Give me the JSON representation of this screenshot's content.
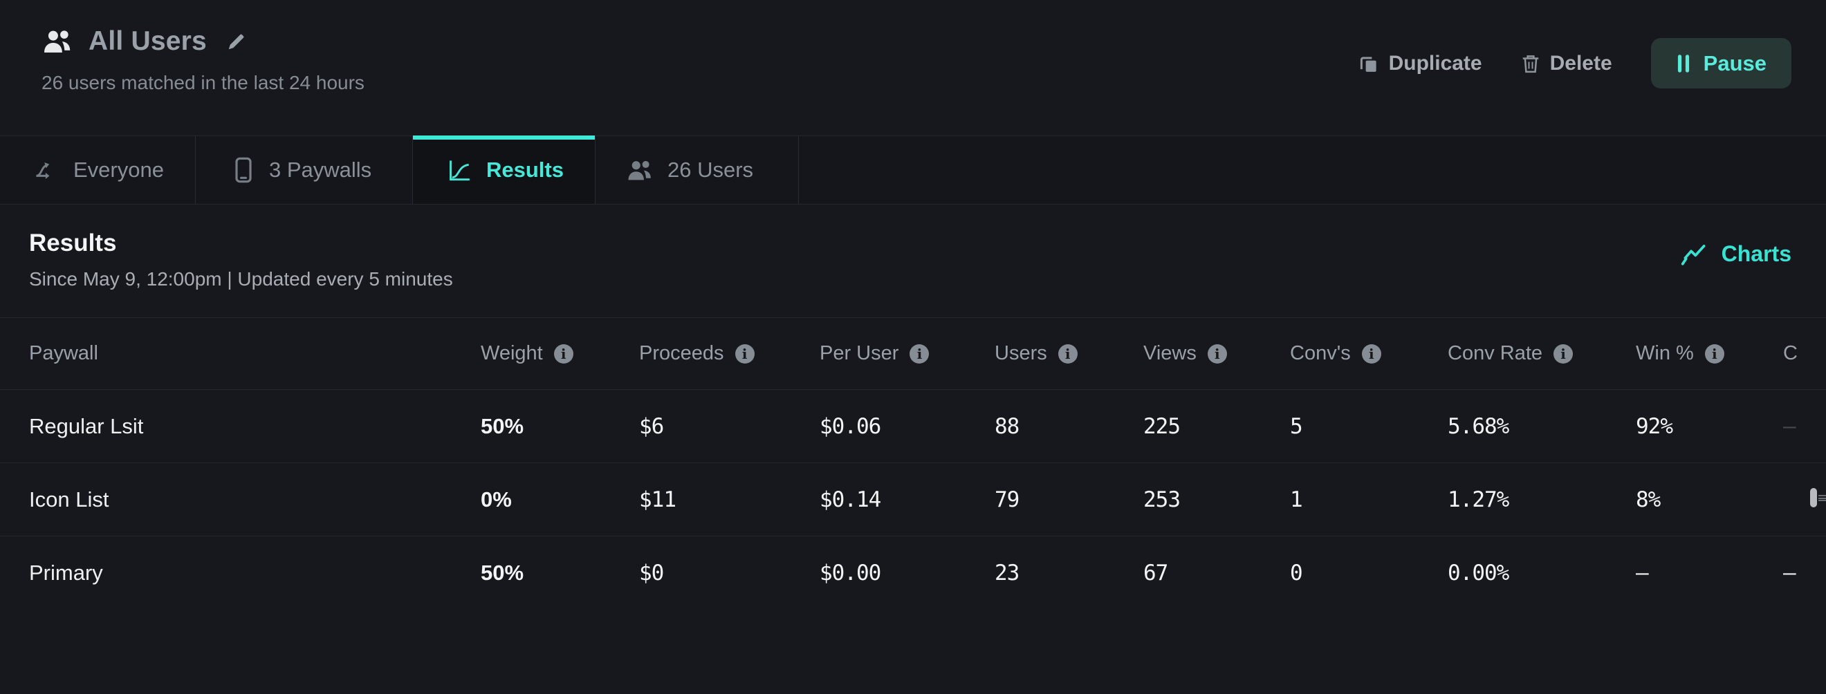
{
  "colors": {
    "accent_teal": "#45e7d7",
    "pause_button_bg": "#263734",
    "page_bg": "#16181d",
    "muted_text": "#8b9199"
  },
  "header": {
    "title": "All Users",
    "subtitle": "26 users matched in the last 24 hours",
    "duplicate_label": "Duplicate",
    "delete_label": "Delete",
    "pause_label": "Pause"
  },
  "tabs": [
    {
      "label": "Everyone",
      "active": false
    },
    {
      "label": "3 Paywalls",
      "active": false
    },
    {
      "label": "Results",
      "active": true
    },
    {
      "label": "26 Users",
      "active": false
    }
  ],
  "results": {
    "heading": "Results",
    "subheading": "Since May 9, 12:00pm | Updated every 5 minutes",
    "charts_label": "Charts"
  },
  "icons": {
    "info_glyph": "i"
  },
  "table": {
    "columns": [
      "Paywall",
      "Weight",
      "Proceeds",
      "Per User",
      "Users",
      "Views",
      "Conv's",
      "Conv Rate",
      "Win %",
      "C"
    ],
    "col_types": [
      "name",
      "weight",
      "mono",
      "mono",
      "mono",
      "mono",
      "mono",
      "mono",
      "mono",
      "mono"
    ],
    "rows": [
      [
        "Regular Lsit",
        "50%",
        "$6",
        "$0.06",
        "88",
        "225",
        "5",
        "5.68%",
        "92%",
        "–"
      ],
      [
        "Icon List",
        "0%",
        "$11",
        "$0.14",
        "79",
        "253",
        "1",
        "1.27%",
        "8%",
        ""
      ],
      [
        "Primary",
        "50%",
        "$0",
        "$0.00",
        "23",
        "67",
        "0",
        "0.00%",
        "–",
        "–"
      ]
    ],
    "extra_styles": [
      "dim",
      "none",
      "bright"
    ]
  }
}
